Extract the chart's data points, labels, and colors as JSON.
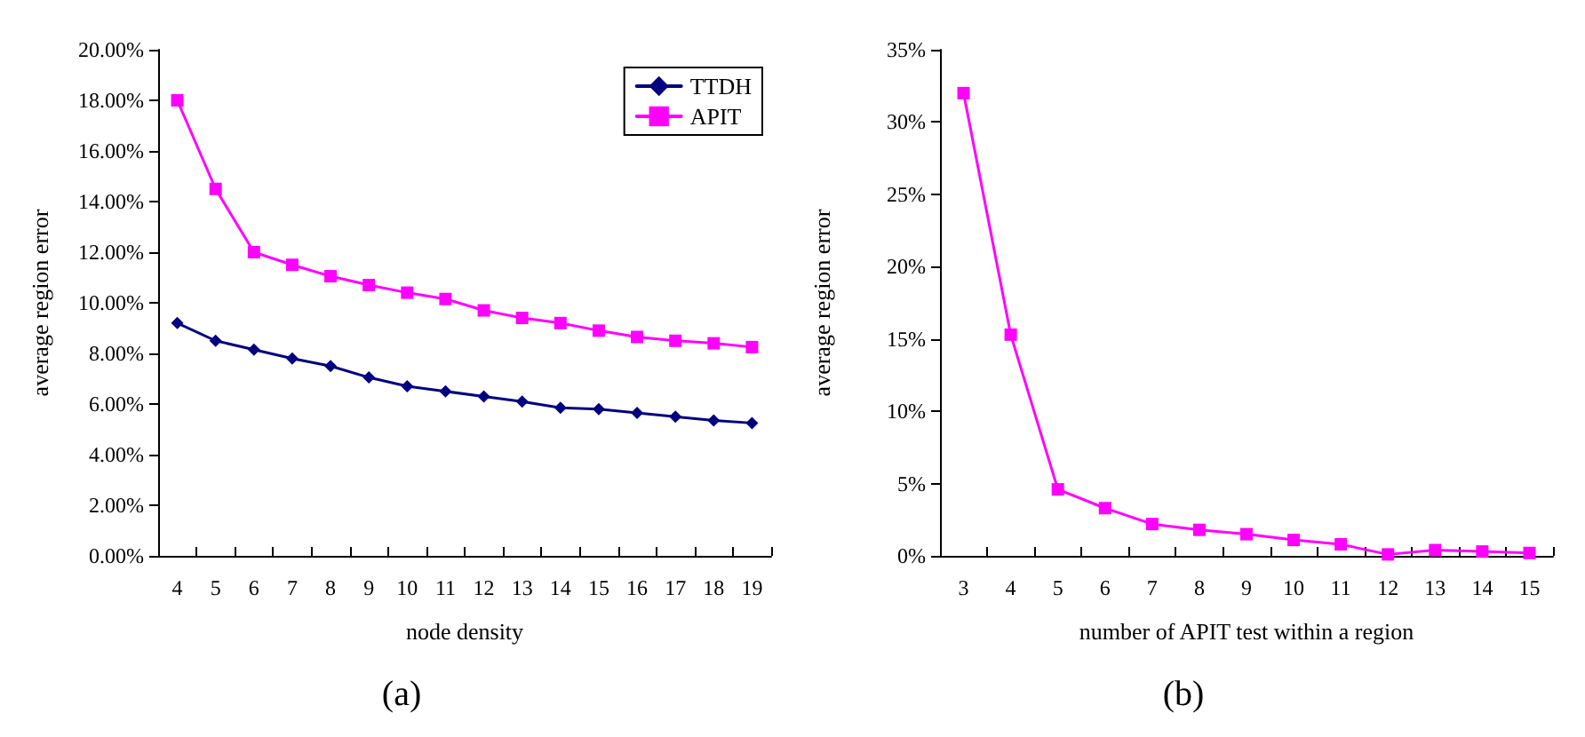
{
  "chart_data": [
    {
      "type": "line",
      "title": "(a)",
      "xlabel": "node density",
      "ylabel": "average region error",
      "categories": [
        "4",
        "5",
        "6",
        "7",
        "8",
        "9",
        "10",
        "11",
        "12",
        "13",
        "14",
        "15",
        "16",
        "17",
        "18",
        "19"
      ],
      "series": [
        {
          "name": "TTDH",
          "color": "#000080",
          "marker": "diamond",
          "values": [
            9.2,
            8.5,
            8.15,
            7.8,
            7.5,
            7.05,
            6.7,
            6.5,
            6.3,
            6.1,
            5.85,
            5.8,
            5.65,
            5.5,
            5.35,
            5.25
          ]
        },
        {
          "name": "APIT",
          "color": "#ff00ff",
          "marker": "square",
          "values": [
            18.0,
            14.5,
            12.0,
            11.5,
            11.05,
            10.7,
            10.4,
            10.15,
            9.7,
            9.4,
            9.2,
            8.9,
            8.65,
            8.5,
            8.4,
            8.25
          ]
        }
      ],
      "ylim": [
        0,
        20
      ],
      "yticks": [
        {
          "value": 0,
          "label": "0.00%"
        },
        {
          "value": 2,
          "label": "2.00%"
        },
        {
          "value": 4,
          "label": "4.00%"
        },
        {
          "value": 6,
          "label": "6.00%"
        },
        {
          "value": 8,
          "label": "8.00%"
        },
        {
          "value": 10,
          "label": "10.00%"
        },
        {
          "value": 12,
          "label": "12.00%"
        },
        {
          "value": 14,
          "label": "14.00%"
        },
        {
          "value": 16,
          "label": "16.00%"
        },
        {
          "value": 18,
          "label": "18.00%"
        },
        {
          "value": 20,
          "label": "20.00%"
        }
      ],
      "grid": false,
      "legend": "top right",
      "line_style": "solid"
    },
    {
      "type": "line",
      "title": "(b)",
      "xlabel": "number of APIT test within a region",
      "ylabel": "average region error",
      "categories": [
        "3",
        "4",
        "5",
        "6",
        "7",
        "8",
        "9",
        "10",
        "11",
        "12",
        "13",
        "14",
        "15"
      ],
      "series": [
        {
          "color": "#ff00ff",
          "marker": "square",
          "values": [
            32,
            15.3,
            4.6,
            3.3,
            2.2,
            1.8,
            1.5,
            1.1,
            0.8,
            0.1,
            0.4,
            0.3,
            0.2
          ]
        }
      ],
      "ylim": [
        0,
        35
      ],
      "yticks": [
        {
          "value": 0,
          "label": "0%"
        },
        {
          "value": 5,
          "label": "5%"
        },
        {
          "value": 10,
          "label": "10%"
        },
        {
          "value": 15,
          "label": "15%"
        },
        {
          "value": 20,
          "label": "20%"
        },
        {
          "value": 25,
          "label": "25%"
        },
        {
          "value": 30,
          "label": "30%"
        },
        {
          "value": 35,
          "label": "35%"
        }
      ],
      "grid": false,
      "legend": false,
      "line_style": "solid"
    }
  ]
}
